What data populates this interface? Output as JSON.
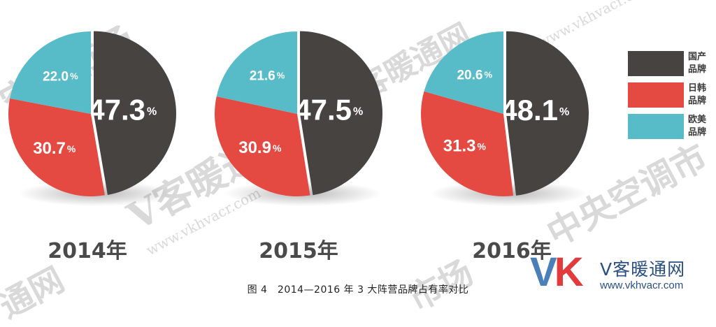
{
  "chart_data": [
    {
      "type": "pie",
      "year_label": "2014年",
      "slices": [
        {
          "name": "国产品牌",
          "value": 47.3,
          "label": "47.3",
          "color": "#474341",
          "text_color": "#ffffff"
        },
        {
          "name": "日韩品牌",
          "value": 30.7,
          "label": "30.7",
          "color": "#e54a42",
          "text_color": "#ffffff"
        },
        {
          "name": "欧美品牌",
          "value": 22.0,
          "label": "22.0",
          "color": "#57bcc8",
          "text_color": "#ffffff"
        }
      ]
    },
    {
      "type": "pie",
      "year_label": "2015年",
      "slices": [
        {
          "name": "国产品牌",
          "value": 47.5,
          "label": "47.5",
          "color": "#474341",
          "text_color": "#ffffff"
        },
        {
          "name": "日韩品牌",
          "value": 30.9,
          "label": "30.9",
          "color": "#e54a42",
          "text_color": "#ffffff"
        },
        {
          "name": "欧美品牌",
          "value": 21.6,
          "label": "21.6",
          "color": "#57bcc8",
          "text_color": "#ffffff"
        }
      ]
    },
    {
      "type": "pie",
      "year_label": "2016年",
      "slices": [
        {
          "name": "国产品牌",
          "value": 48.1,
          "label": "48.1",
          "color": "#474341",
          "text_color": "#ffffff"
        },
        {
          "name": "日韩品牌",
          "value": 31.3,
          "label": "31.3",
          "color": "#e54a42",
          "text_color": "#ffffff"
        },
        {
          "name": "欧美品牌",
          "value": 20.6,
          "label": "20.6",
          "color": "#57bcc8",
          "text_color": "#ffffff"
        }
      ]
    }
  ],
  "percent_sign": "%",
  "legend": {
    "placement": "right",
    "items": [
      {
        "line1": "国产",
        "line2": "品牌",
        "color": "#474341"
      },
      {
        "line1": "日韩",
        "line2": "品牌",
        "color": "#e54a42"
      },
      {
        "line1": "欧美",
        "line2": "品牌",
        "color": "#57bcc8"
      }
    ]
  },
  "caption": "图 4　2014—2016 年 3 大阵营品牌占有率对比",
  "logo": {
    "v": "V",
    "k": "K",
    "name": "V客暖通网",
    "url": "www.vkhvacr.com"
  },
  "watermarks": {
    "text_a": "空调市场",
    "text_b": "V客暖通网",
    "text_c": "www.vkhvacr.com",
    "text_d": "中央空调市",
    "text_e": "通网",
    "text_f": "市场"
  }
}
